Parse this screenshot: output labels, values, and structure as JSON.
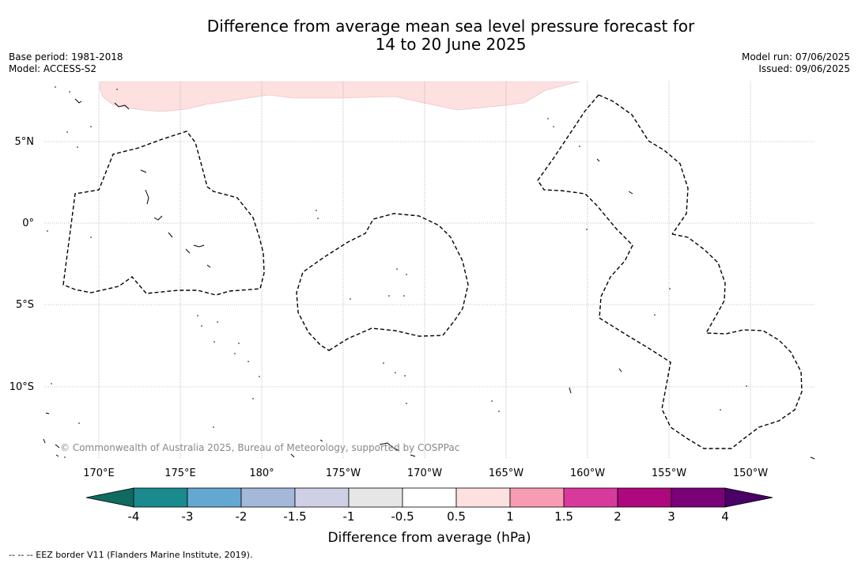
{
  "title": {
    "line1": "Difference from average mean sea level pressure forecast for",
    "line2": "14 to 20 June 2025"
  },
  "meta_left": {
    "base_period": "Base period: 1981-2018",
    "model": "Model: ACCESS-S2"
  },
  "meta_right": {
    "model_run": "Model run: 07/06/2025",
    "issued": "Issued: 09/06/2025"
  },
  "map": {
    "lat_labels": [
      "5°N",
      "0°",
      "5°S",
      "10°S"
    ],
    "lon_labels": [
      "170°E",
      "175°E",
      "180°",
      "175°W",
      "170°W",
      "165°W",
      "160°W",
      "155°W",
      "150°W"
    ],
    "copyright": "© Commonwealth of Australia 2025, Bureau of Meteorology, supported by COSPPac",
    "positive_anomaly_fill": "#fde0e0"
  },
  "colorbar": {
    "ticks": [
      "-4",
      "-3",
      "-2",
      "-1.5",
      "-1",
      "-0.5",
      "0.5",
      "1",
      "1.5",
      "2",
      "3",
      "4"
    ],
    "colors": [
      "#1a8a8e",
      "#64a8d2",
      "#a4b8da",
      "#cfd0e6",
      "#e6e6e6",
      "#ffffff",
      "#fde0e0",
      "#f89cb4",
      "#d83a9c",
      "#ad087e",
      "#7a0178"
    ],
    "low_extend_color": "#0f6b61",
    "high_extend_color": "#4a0066",
    "label": "Difference from average (hPa)"
  },
  "footnote": "--  --  -- EEZ border V11 (Flanders Marine Institute, 2019)."
}
